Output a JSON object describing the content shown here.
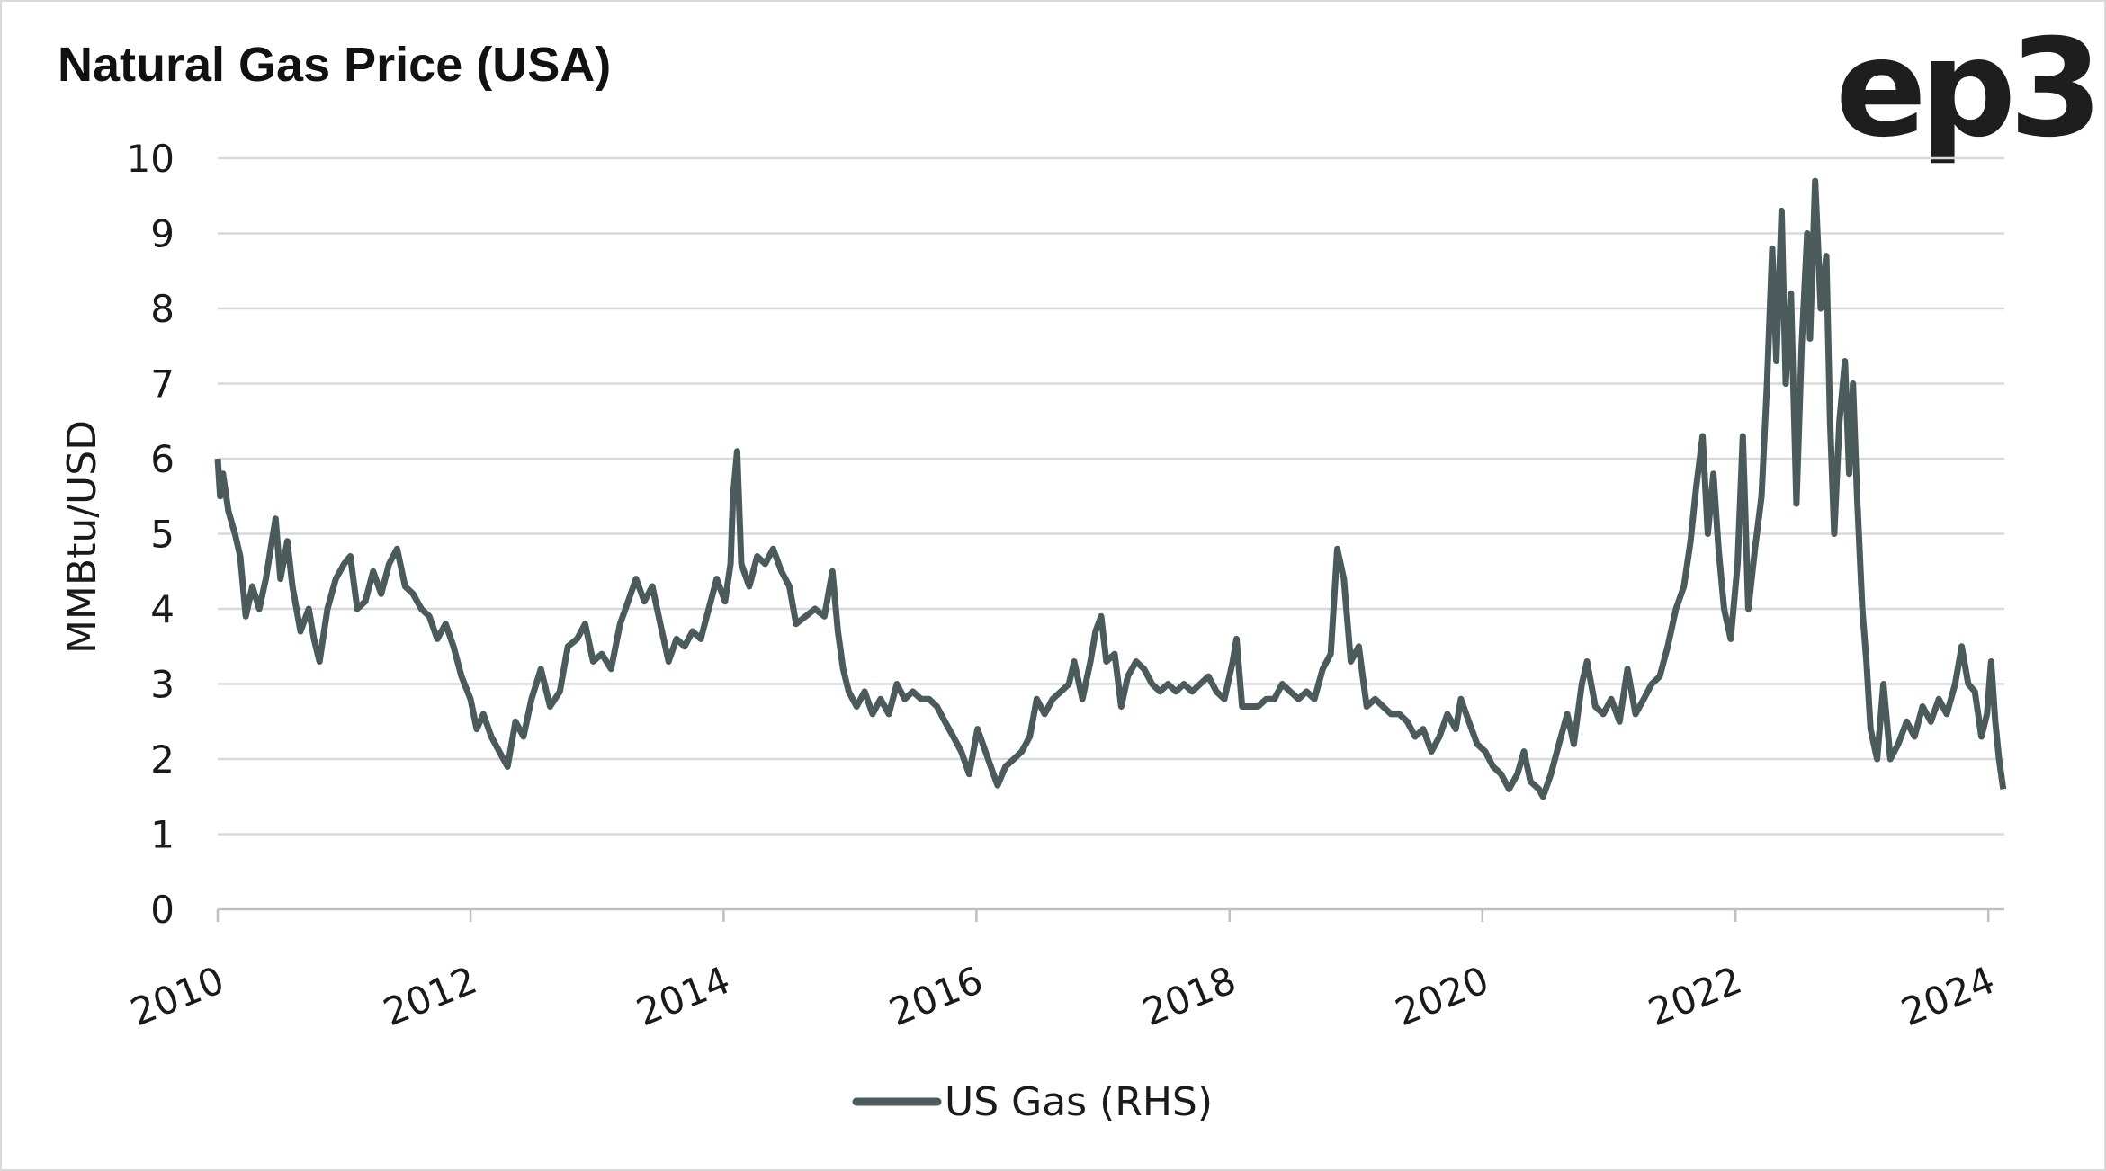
{
  "title": "Natural Gas Price (USA)",
  "logo_text": "ep3",
  "chart_data": {
    "type": "line",
    "title": "Natural Gas Price (USA)",
    "xlabel": "",
    "ylabel": "MMBtu/USD",
    "ylim": [
      0,
      10
    ],
    "yticks": [
      "0",
      "1",
      "2",
      "3",
      "4",
      "5",
      "6",
      "7",
      "8",
      "9",
      "10"
    ],
    "xlim": [
      "2010-01-01",
      "2024-02-14"
    ],
    "xticks": [
      "2010",
      "2012",
      "2014",
      "2016",
      "2018",
      "2020",
      "2022",
      "2024"
    ],
    "grid": "horizontal",
    "legend_position": "bottom",
    "line_color": "#4b5b5b",
    "series": [
      {
        "name": "US Gas (RHS)",
        "points": [
          [
            "2010-01-01",
            6.0
          ],
          [
            "2010-01-08",
            5.5
          ],
          [
            "2010-01-16",
            5.8
          ],
          [
            "2010-02-01",
            5.3
          ],
          [
            "2010-02-20",
            5.0
          ],
          [
            "2010-03-07",
            4.7
          ],
          [
            "2010-03-23",
            3.9
          ],
          [
            "2010-04-11",
            4.3
          ],
          [
            "2010-05-01",
            4.0
          ],
          [
            "2010-05-20",
            4.4
          ],
          [
            "2010-06-17",
            5.2
          ],
          [
            "2010-07-01",
            4.4
          ],
          [
            "2010-07-21",
            4.9
          ],
          [
            "2010-08-05",
            4.3
          ],
          [
            "2010-08-28",
            3.7
          ],
          [
            "2010-09-21",
            4.0
          ],
          [
            "2010-10-06",
            3.6
          ],
          [
            "2010-10-22",
            3.3
          ],
          [
            "2010-11-14",
            4.0
          ],
          [
            "2010-12-08",
            4.4
          ],
          [
            "2011-01-01",
            4.6
          ],
          [
            "2011-01-19",
            4.7
          ],
          [
            "2011-02-08",
            4.0
          ],
          [
            "2011-03-03",
            4.1
          ],
          [
            "2011-03-26",
            4.5
          ],
          [
            "2011-04-18",
            4.2
          ],
          [
            "2011-05-11",
            4.6
          ],
          [
            "2011-06-03",
            4.8
          ],
          [
            "2011-06-26",
            4.3
          ],
          [
            "2011-07-19",
            4.2
          ],
          [
            "2011-08-12",
            4.0
          ],
          [
            "2011-09-04",
            3.9
          ],
          [
            "2011-09-27",
            3.6
          ],
          [
            "2011-10-21",
            3.8
          ],
          [
            "2011-11-13",
            3.5
          ],
          [
            "2011-12-06",
            3.1
          ],
          [
            "2012-01-01",
            2.8
          ],
          [
            "2012-01-19",
            2.4
          ],
          [
            "2012-02-07",
            2.6
          ],
          [
            "2012-03-01",
            2.3
          ],
          [
            "2012-03-24",
            2.1
          ],
          [
            "2012-04-17",
            1.9
          ],
          [
            "2012-05-10",
            2.5
          ],
          [
            "2012-06-02",
            2.3
          ],
          [
            "2012-06-25",
            2.8
          ],
          [
            "2012-07-22",
            3.2
          ],
          [
            "2012-08-18",
            2.7
          ],
          [
            "2012-09-15",
            2.9
          ],
          [
            "2012-10-08",
            3.5
          ],
          [
            "2012-11-04",
            3.6
          ],
          [
            "2012-11-27",
            3.8
          ],
          [
            "2012-12-20",
            3.3
          ],
          [
            "2013-01-14",
            3.4
          ],
          [
            "2013-02-10",
            3.2
          ],
          [
            "2013-03-08",
            3.8
          ],
          [
            "2013-03-31",
            4.1
          ],
          [
            "2013-04-23",
            4.4
          ],
          [
            "2013-05-17",
            4.1
          ],
          [
            "2013-06-09",
            4.3
          ],
          [
            "2013-07-02",
            3.8
          ],
          [
            "2013-07-26",
            3.3
          ],
          [
            "2013-08-18",
            3.6
          ],
          [
            "2013-09-10",
            3.5
          ],
          [
            "2013-10-03",
            3.7
          ],
          [
            "2013-10-27",
            3.6
          ],
          [
            "2013-11-19",
            4.0
          ],
          [
            "2013-12-12",
            4.4
          ],
          [
            "2014-01-05",
            4.1
          ],
          [
            "2014-01-21",
            4.6
          ],
          [
            "2014-01-28",
            5.5
          ],
          [
            "2014-02-09",
            6.1
          ],
          [
            "2014-02-21",
            4.6
          ],
          [
            "2014-03-16",
            4.3
          ],
          [
            "2014-04-08",
            4.7
          ],
          [
            "2014-05-01",
            4.6
          ],
          [
            "2014-05-24",
            4.8
          ],
          [
            "2014-06-17",
            4.5
          ],
          [
            "2014-07-10",
            4.3
          ],
          [
            "2014-07-29",
            3.8
          ],
          [
            "2014-08-26",
            3.9
          ],
          [
            "2014-09-22",
            4.0
          ],
          [
            "2014-10-19",
            3.9
          ],
          [
            "2014-11-11",
            4.5
          ],
          [
            "2014-11-27",
            3.7
          ],
          [
            "2014-12-12",
            3.2
          ],
          [
            "2014-12-28",
            2.9
          ],
          [
            "2015-01-20",
            2.7
          ],
          [
            "2015-02-12",
            2.9
          ],
          [
            "2015-03-07",
            2.6
          ],
          [
            "2015-03-30",
            2.8
          ],
          [
            "2015-04-23",
            2.6
          ],
          [
            "2015-05-16",
            3.0
          ],
          [
            "2015-06-08",
            2.8
          ],
          [
            "2015-07-01",
            2.9
          ],
          [
            "2015-07-25",
            2.8
          ],
          [
            "2015-08-17",
            2.8
          ],
          [
            "2015-09-09",
            2.7
          ],
          [
            "2015-10-02",
            2.5
          ],
          [
            "2015-10-26",
            2.3
          ],
          [
            "2015-11-18",
            2.1
          ],
          [
            "2015-12-11",
            1.8
          ],
          [
            "2016-01-04",
            2.4
          ],
          [
            "2016-01-27",
            2.1
          ],
          [
            "2016-02-19",
            1.8
          ],
          [
            "2016-03-02",
            1.65
          ],
          [
            "2016-03-25",
            1.9
          ],
          [
            "2016-04-18",
            2.0
          ],
          [
            "2016-05-11",
            2.1
          ],
          [
            "2016-06-03",
            2.3
          ],
          [
            "2016-06-23",
            2.8
          ],
          [
            "2016-07-16",
            2.6
          ],
          [
            "2016-08-08",
            2.8
          ],
          [
            "2016-09-01",
            2.9
          ],
          [
            "2016-09-24",
            3.0
          ],
          [
            "2016-10-09",
            3.3
          ],
          [
            "2016-11-02",
            2.8
          ],
          [
            "2016-11-25",
            3.3
          ],
          [
            "2016-12-10",
            3.7
          ],
          [
            "2016-12-26",
            3.9
          ],
          [
            "2017-01-10",
            3.3
          ],
          [
            "2017-02-03",
            3.4
          ],
          [
            "2017-02-22",
            2.7
          ],
          [
            "2017-03-13",
            3.1
          ],
          [
            "2017-04-06",
            3.3
          ],
          [
            "2017-04-29",
            3.2
          ],
          [
            "2017-05-22",
            3.0
          ],
          [
            "2017-06-14",
            2.9
          ],
          [
            "2017-07-07",
            3.0
          ],
          [
            "2017-07-30",
            2.9
          ],
          [
            "2017-08-22",
            3.0
          ],
          [
            "2017-09-15",
            2.9
          ],
          [
            "2017-10-08",
            3.0
          ],
          [
            "2017-11-01",
            3.1
          ],
          [
            "2017-11-24",
            2.9
          ],
          [
            "2017-12-17",
            2.8
          ],
          [
            "2018-01-10",
            3.3
          ],
          [
            "2018-01-21",
            3.6
          ],
          [
            "2018-02-06",
            2.7
          ],
          [
            "2018-03-01",
            2.7
          ],
          [
            "2018-03-24",
            2.7
          ],
          [
            "2018-04-17",
            2.8
          ],
          [
            "2018-05-10",
            2.8
          ],
          [
            "2018-06-02",
            3.0
          ],
          [
            "2018-06-25",
            2.9
          ],
          [
            "2018-07-19",
            2.8
          ],
          [
            "2018-08-11",
            2.9
          ],
          [
            "2018-09-03",
            2.8
          ],
          [
            "2018-09-27",
            3.2
          ],
          [
            "2018-10-20",
            3.4
          ],
          [
            "2018-11-08",
            4.8
          ],
          [
            "2018-11-27",
            4.4
          ],
          [
            "2018-12-17",
            3.3
          ],
          [
            "2019-01-09",
            3.5
          ],
          [
            "2019-02-01",
            2.7
          ],
          [
            "2019-02-25",
            2.8
          ],
          [
            "2019-03-20",
            2.7
          ],
          [
            "2019-04-12",
            2.6
          ],
          [
            "2019-05-06",
            2.6
          ],
          [
            "2019-05-29",
            2.5
          ],
          [
            "2019-06-21",
            2.3
          ],
          [
            "2019-07-14",
            2.4
          ],
          [
            "2019-08-07",
            2.1
          ],
          [
            "2019-08-30",
            2.3
          ],
          [
            "2019-09-22",
            2.6
          ],
          [
            "2019-10-16",
            2.4
          ],
          [
            "2019-10-31",
            2.8
          ],
          [
            "2019-11-23",
            2.5
          ],
          [
            "2019-12-17",
            2.2
          ],
          [
            "2020-01-09",
            2.1
          ],
          [
            "2020-02-01",
            1.9
          ],
          [
            "2020-02-24",
            1.8
          ],
          [
            "2020-03-18",
            1.6
          ],
          [
            "2020-04-11",
            1.8
          ],
          [
            "2020-04-30",
            2.1
          ],
          [
            "2020-05-19",
            1.7
          ],
          [
            "2020-06-12",
            1.6
          ],
          [
            "2020-06-24",
            1.5
          ],
          [
            "2020-07-17",
            1.8
          ],
          [
            "2020-08-09",
            2.2
          ],
          [
            "2020-09-02",
            2.6
          ],
          [
            "2020-09-21",
            2.2
          ],
          [
            "2020-10-14",
            3.0
          ],
          [
            "2020-10-29",
            3.3
          ],
          [
            "2020-11-22",
            2.7
          ],
          [
            "2020-12-15",
            2.6
          ],
          [
            "2021-01-07",
            2.8
          ],
          [
            "2021-01-31",
            2.5
          ],
          [
            "2021-02-23",
            3.2
          ],
          [
            "2021-03-18",
            2.6
          ],
          [
            "2021-04-11",
            2.8
          ],
          [
            "2021-05-04",
            3.0
          ],
          [
            "2021-05-27",
            3.1
          ],
          [
            "2021-06-19",
            3.5
          ],
          [
            "2021-07-13",
            4.0
          ],
          [
            "2021-08-05",
            4.3
          ],
          [
            "2021-08-24",
            4.9
          ],
          [
            "2021-09-09",
            5.6
          ],
          [
            "2021-09-28",
            6.3
          ],
          [
            "2021-10-13",
            5.0
          ],
          [
            "2021-10-29",
            5.8
          ],
          [
            "2021-11-13",
            4.8
          ],
          [
            "2021-11-29",
            4.0
          ],
          [
            "2021-12-18",
            3.6
          ],
          [
            "2022-01-07",
            4.6
          ],
          [
            "2022-01-22",
            6.3
          ],
          [
            "2022-02-07",
            4.0
          ],
          [
            "2022-02-26",
            4.8
          ],
          [
            "2022-03-17",
            5.5
          ],
          [
            "2022-04-02",
            7.0
          ],
          [
            "2022-04-17",
            8.8
          ],
          [
            "2022-04-29",
            7.3
          ],
          [
            "2022-05-14",
            9.3
          ],
          [
            "2022-05-26",
            7.0
          ],
          [
            "2022-06-10",
            8.2
          ],
          [
            "2022-06-26",
            5.4
          ],
          [
            "2022-07-11",
            7.5
          ],
          [
            "2022-07-27",
            9.0
          ],
          [
            "2022-08-04",
            7.6
          ],
          [
            "2022-08-19",
            9.7
          ],
          [
            "2022-09-04",
            8.0
          ],
          [
            "2022-09-20",
            8.7
          ],
          [
            "2022-10-01",
            6.5
          ],
          [
            "2022-10-13",
            5.0
          ],
          [
            "2022-10-28",
            6.5
          ],
          [
            "2022-11-13",
            7.3
          ],
          [
            "2022-11-25",
            5.8
          ],
          [
            "2022-12-06",
            7.0
          ],
          [
            "2022-12-18",
            5.5
          ],
          [
            "2023-01-02",
            4.0
          ],
          [
            "2023-01-14",
            3.3
          ],
          [
            "2023-01-26",
            2.4
          ],
          [
            "2023-02-14",
            2.0
          ],
          [
            "2023-03-04",
            3.0
          ],
          [
            "2023-03-24",
            2.0
          ],
          [
            "2023-04-16",
            2.2
          ],
          [
            "2023-05-10",
            2.5
          ],
          [
            "2023-06-02",
            2.3
          ],
          [
            "2023-06-25",
            2.7
          ],
          [
            "2023-07-19",
            2.5
          ],
          [
            "2023-08-11",
            2.8
          ],
          [
            "2023-09-03",
            2.6
          ],
          [
            "2023-09-27",
            3.0
          ],
          [
            "2023-10-16",
            3.5
          ],
          [
            "2023-11-04",
            3.0
          ],
          [
            "2023-11-23",
            2.9
          ],
          [
            "2023-12-12",
            2.3
          ],
          [
            "2023-12-28",
            2.6
          ],
          [
            "2024-01-09",
            3.3
          ],
          [
            "2024-01-21",
            2.5
          ],
          [
            "2024-02-01",
            2.0
          ],
          [
            "2024-02-13",
            1.6
          ]
        ]
      }
    ]
  }
}
